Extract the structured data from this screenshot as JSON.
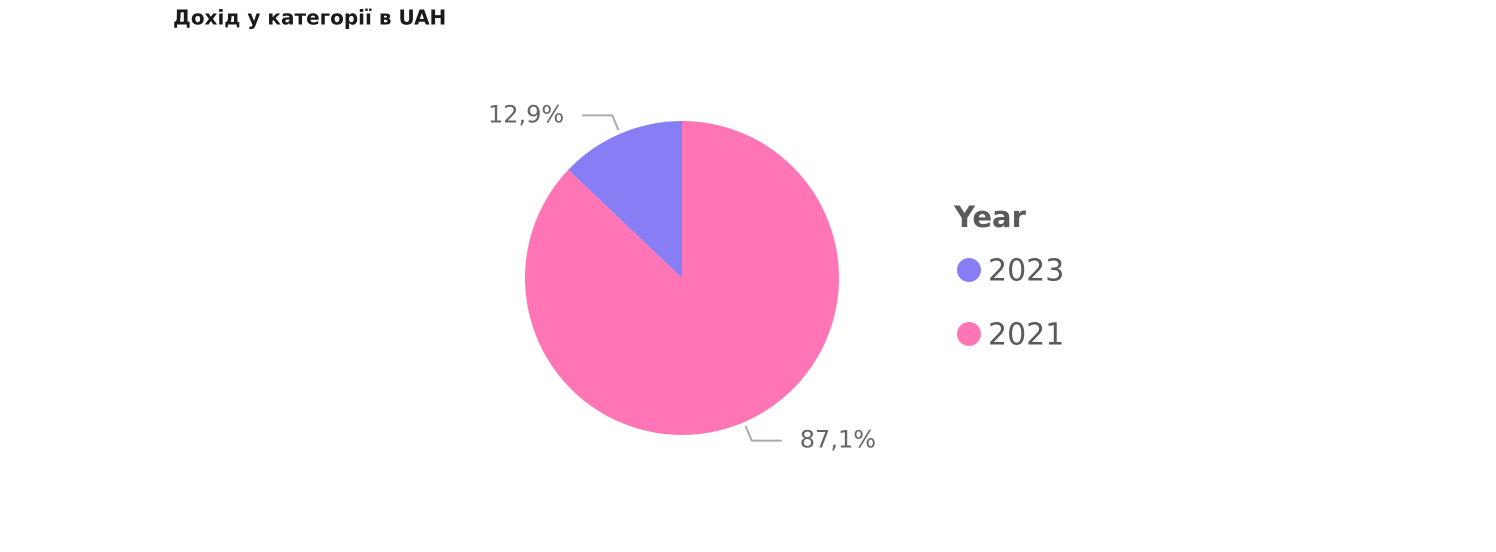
{
  "chart_data": {
    "type": "pie",
    "title": "Дохід у категорії в UAH",
    "legend_title": "Year",
    "categories": [
      "2023",
      "2021"
    ],
    "values": [
      12.9,
      87.1
    ],
    "value_labels": [
      "12,9%",
      "87,1%"
    ],
    "colors": [
      "#877ef6",
      "#ff75b5"
    ],
    "legend": "right"
  }
}
